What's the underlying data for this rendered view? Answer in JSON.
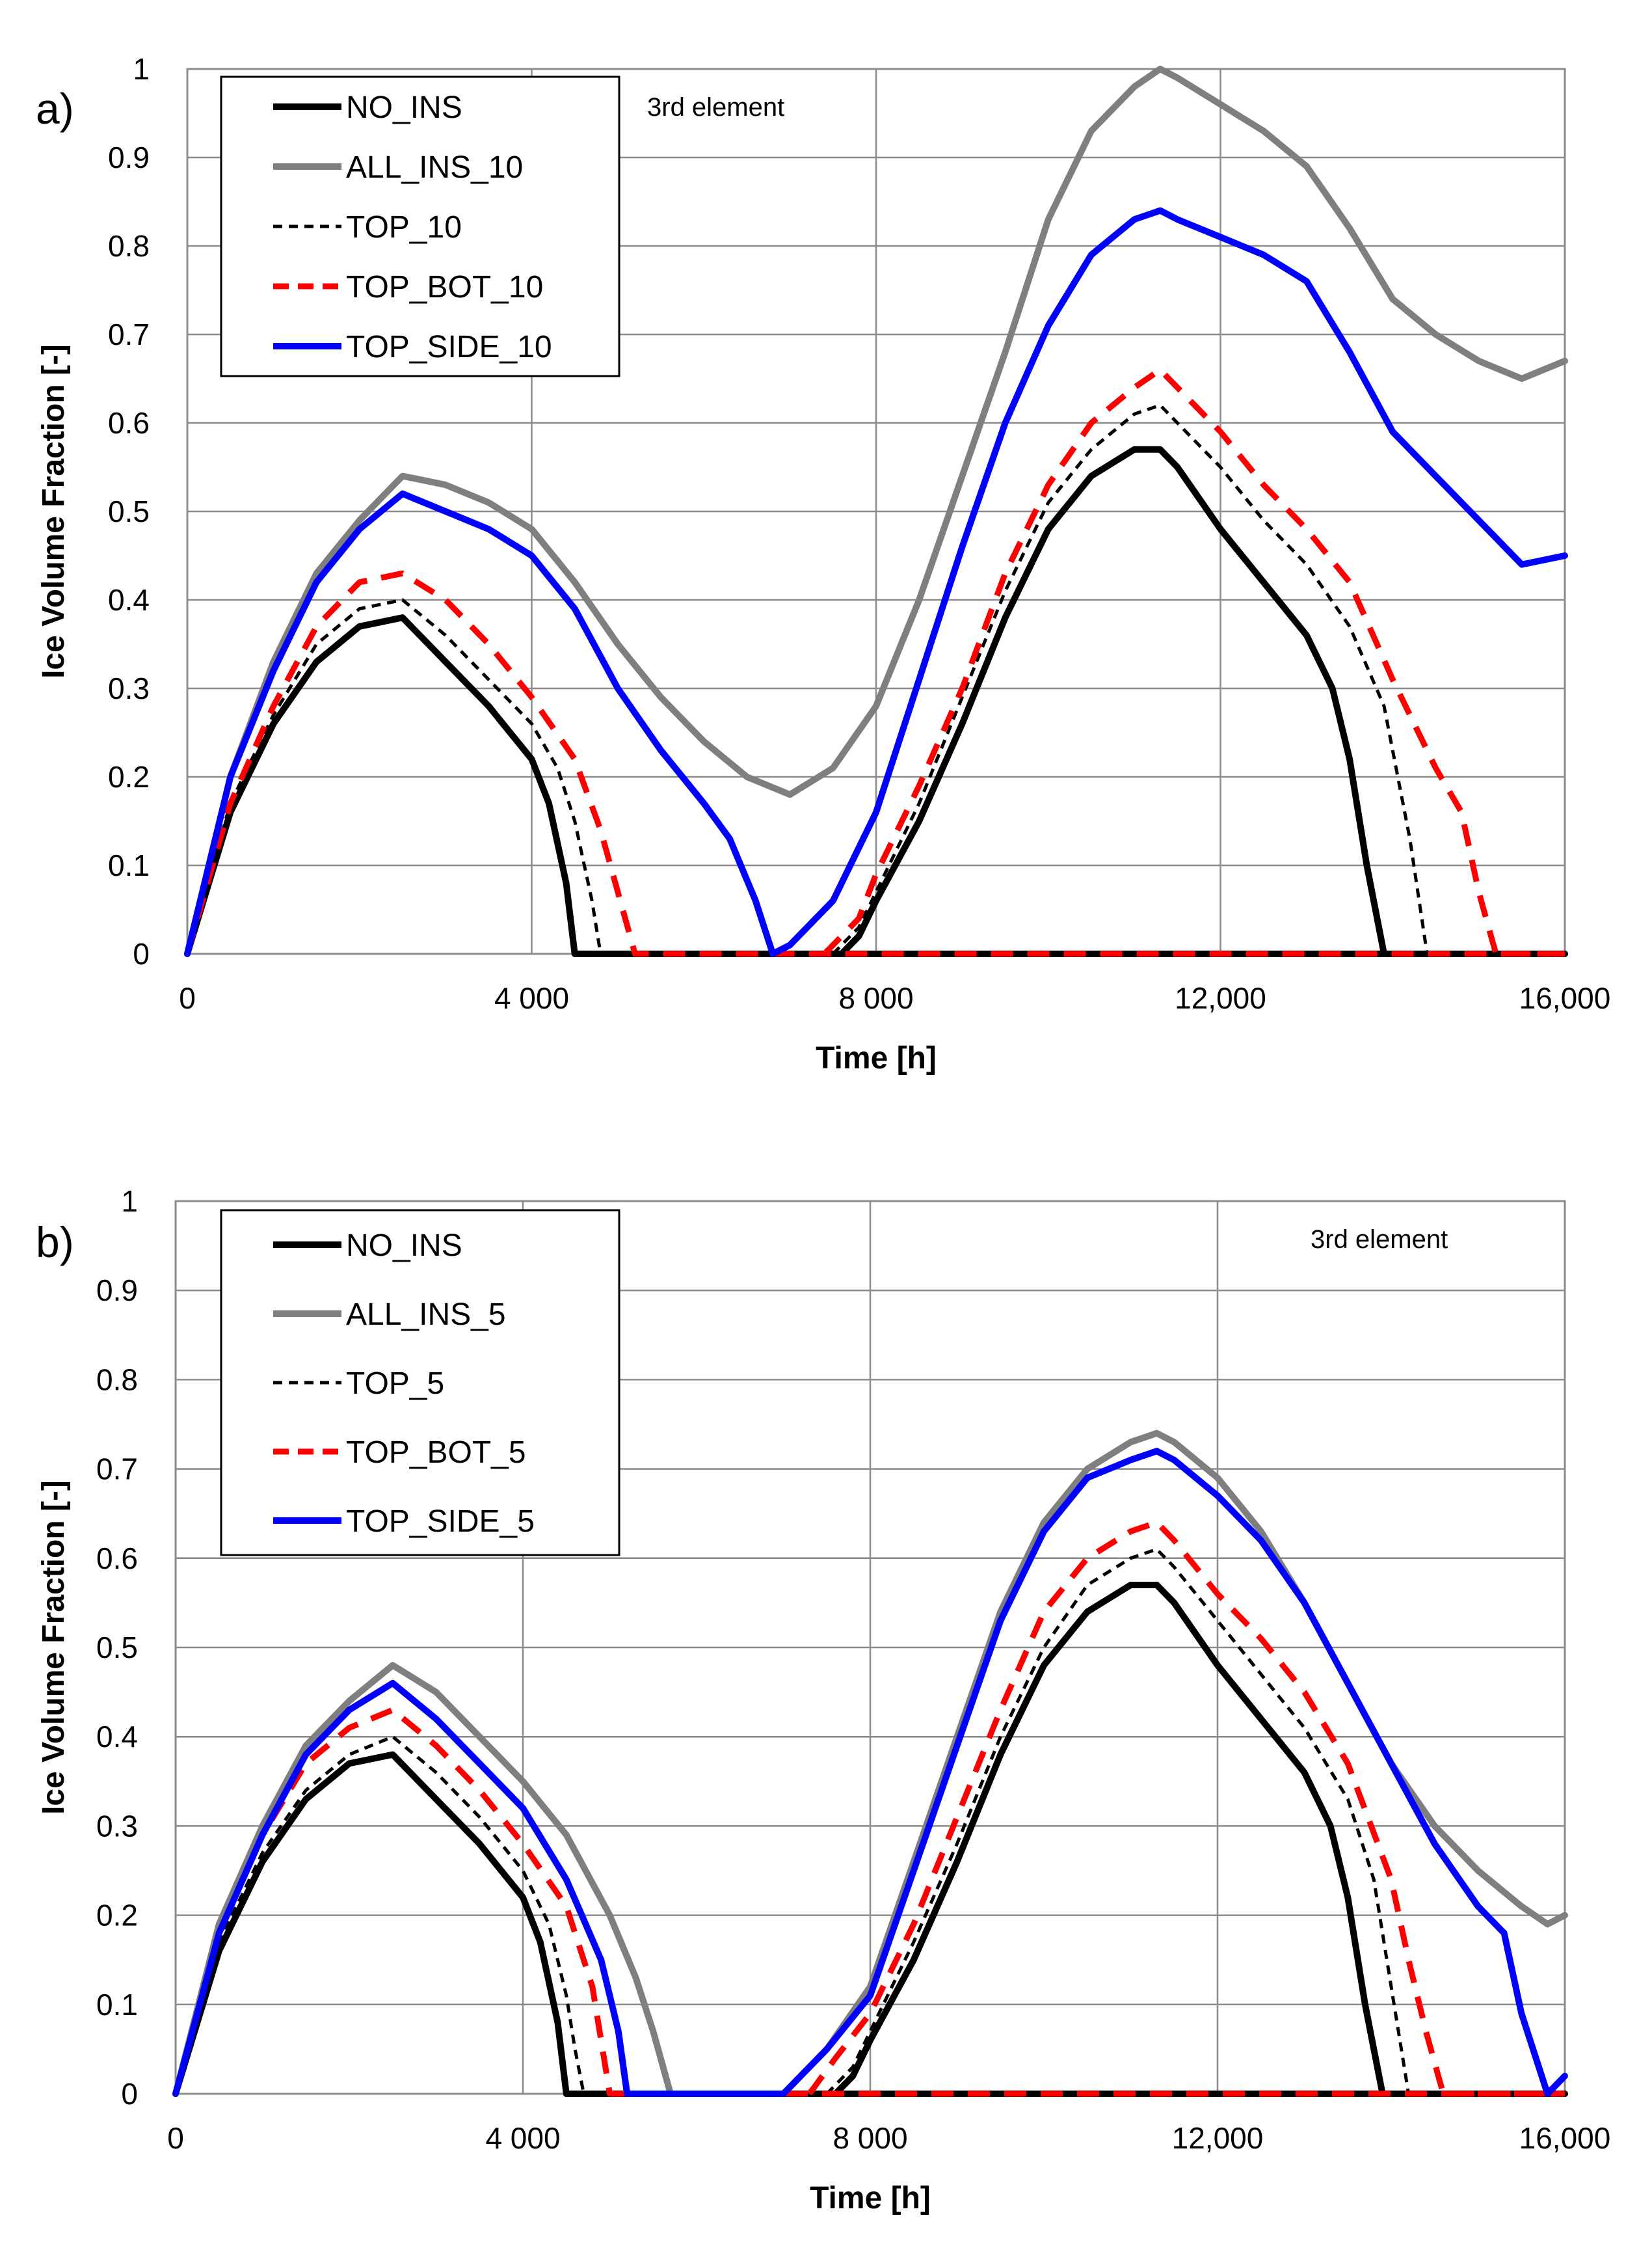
{
  "chart_data": [
    {
      "type": "line",
      "panel": "a)",
      "annotation": "3rd element",
      "xlabel": "Time [h]",
      "ylabel": "Ice Volume Fraction [-]",
      "xlim": [
        0,
        16000
      ],
      "ylim": [
        0,
        1
      ],
      "x_ticks": [
        0,
        4000,
        8000,
        12000,
        16000
      ],
      "x_tick_labels": [
        "0",
        "4 000",
        "8 000",
        "12,000",
        "16,000"
      ],
      "y_ticks": [
        0,
        0.1,
        0.2,
        0.3,
        0.4,
        0.5,
        0.6,
        0.7,
        0.8,
        0.9,
        1
      ],
      "y_tick_labels": [
        "0",
        "0.1",
        "0.2",
        "0.3",
        "0.4",
        "0.5",
        "0.6",
        "0.7",
        "0.8",
        "0.9",
        "1"
      ],
      "grid": true,
      "legend_position": "top-left",
      "series": [
        {
          "name": "NO_INS",
          "color": "#000000",
          "style": "solid",
          "x": [
            0,
            500,
            1000,
            1500,
            2000,
            2500,
            3000,
            3500,
            4000,
            4200,
            4400,
            4500,
            16000
          ],
          "y": [
            0,
            0.16,
            0.26,
            0.33,
            0.37,
            0.38,
            0.33,
            0.28,
            0.22,
            0.17,
            0.08,
            0,
            0
          ],
          "x2": [
            7600,
            7800,
            8000,
            8500,
            9000,
            9500,
            10000,
            10500,
            11000,
            11300,
            11500,
            12000,
            12500,
            13000,
            13300,
            13500,
            13700,
            13900,
            16000
          ],
          "y2": [
            0,
            0.02,
            0.06,
            0.15,
            0.26,
            0.38,
            0.48,
            0.54,
            0.57,
            0.57,
            0.55,
            0.48,
            0.42,
            0.36,
            0.3,
            0.22,
            0.1,
            0,
            0
          ]
        },
        {
          "name": "ALL_INS_10",
          "color": "#7f7f7f",
          "style": "solid",
          "x": [
            0,
            500,
            1000,
            1500,
            2000,
            2500,
            3000,
            3500,
            4000,
            4500,
            5000,
            5500,
            6000,
            6500,
            7000,
            7500,
            8000,
            8500,
            9000,
            9500,
            10000,
            10500,
            11000,
            11300,
            11500,
            12000,
            12500,
            13000,
            13500,
            14000,
            14500,
            15000,
            15500,
            16000
          ],
          "y": [
            0,
            0.2,
            0.33,
            0.43,
            0.49,
            0.54,
            0.53,
            0.51,
            0.48,
            0.42,
            0.35,
            0.29,
            0.24,
            0.2,
            0.18,
            0.21,
            0.28,
            0.4,
            0.54,
            0.68,
            0.83,
            0.93,
            0.98,
            1.0,
            0.99,
            0.96,
            0.93,
            0.89,
            0.82,
            0.74,
            0.7,
            0.67,
            0.65,
            0.67
          ]
        },
        {
          "name": "TOP_10",
          "color": "#000000",
          "style": "dashed",
          "x": [
            0,
            500,
            1000,
            1500,
            2000,
            2500,
            3000,
            3500,
            4000,
            4300,
            4500,
            4700,
            4800,
            16000
          ],
          "y": [
            0,
            0.17,
            0.27,
            0.35,
            0.39,
            0.4,
            0.36,
            0.31,
            0.26,
            0.21,
            0.15,
            0.06,
            0,
            0
          ],
          "x2": [
            7500,
            7800,
            8000,
            8500,
            9000,
            9500,
            10000,
            10500,
            11000,
            11300,
            11500,
            12000,
            12500,
            13000,
            13500,
            13900,
            14200,
            14400,
            16000
          ],
          "y2": [
            0,
            0.03,
            0.07,
            0.17,
            0.29,
            0.41,
            0.51,
            0.57,
            0.61,
            0.62,
            0.6,
            0.55,
            0.49,
            0.44,
            0.37,
            0.28,
            0.13,
            0,
            0
          ]
        },
        {
          "name": "TOP_BOT_10",
          "color": "#ff0000",
          "style": "dashed",
          "x": [
            0,
            500,
            1000,
            1500,
            2000,
            2500,
            3000,
            3500,
            4000,
            4500,
            4800,
            5000,
            5200,
            16000
          ],
          "y": [
            0,
            0.17,
            0.28,
            0.37,
            0.42,
            0.43,
            0.4,
            0.35,
            0.29,
            0.22,
            0.14,
            0.07,
            0,
            0
          ],
          "x2": [
            7400,
            7800,
            8000,
            8500,
            9000,
            9500,
            10000,
            10500,
            11000,
            11300,
            11500,
            12000,
            12500,
            13000,
            13500,
            14000,
            14500,
            14800,
            15000,
            15200,
            16000
          ],
          "y2": [
            0,
            0.04,
            0.09,
            0.19,
            0.3,
            0.43,
            0.53,
            0.6,
            0.64,
            0.66,
            0.64,
            0.59,
            0.53,
            0.48,
            0.42,
            0.31,
            0.21,
            0.16,
            0.07,
            0,
            0
          ]
        },
        {
          "name": "TOP_SIDE_10",
          "color": "#0000ff",
          "style": "solid",
          "x": [
            0,
            500,
            1000,
            1500,
            2000,
            2500,
            3000,
            3500,
            4000,
            4500,
            5000,
            5500,
            6000,
            6300,
            6600,
            6800,
            7000,
            7500,
            8000,
            8500,
            9000,
            9500,
            10000,
            10500,
            11000,
            11300,
            11500,
            12000,
            12500,
            13000,
            13500,
            14000,
            14500,
            15000,
            15500,
            16000
          ],
          "y": [
            0,
            0.2,
            0.32,
            0.42,
            0.48,
            0.52,
            0.5,
            0.48,
            0.45,
            0.39,
            0.3,
            0.23,
            0.17,
            0.13,
            0.06,
            0,
            0.01,
            0.06,
            0.16,
            0.31,
            0.46,
            0.6,
            0.71,
            0.79,
            0.83,
            0.84,
            0.83,
            0.81,
            0.79,
            0.76,
            0.68,
            0.59,
            0.54,
            0.49,
            0.44,
            0.45
          ]
        }
      ]
    },
    {
      "type": "line",
      "panel": "b)",
      "annotation": "3rd element",
      "xlabel": "Time [h]",
      "ylabel": "Ice Volume Fraction [-]",
      "xlim": [
        0,
        16000
      ],
      "ylim": [
        0,
        1
      ],
      "x_ticks": [
        0,
        4000,
        8000,
        12000,
        16000
      ],
      "x_tick_labels": [
        "0",
        "4 000",
        "8 000",
        "12,000",
        "16,000"
      ],
      "y_ticks": [
        0,
        0.1,
        0.2,
        0.3,
        0.4,
        0.5,
        0.6,
        0.7,
        0.8,
        0.9,
        1
      ],
      "y_tick_labels": [
        "0",
        "0.1",
        "0.2",
        "0.3",
        "0.4",
        "0.5",
        "0.6",
        "0.7",
        "0.8",
        "0.9",
        "1"
      ],
      "grid": true,
      "legend_position": "top-left",
      "series": [
        {
          "name": "NO_INS",
          "color": "#000000",
          "style": "solid",
          "x": [
            0,
            500,
            1000,
            1500,
            2000,
            2500,
            3000,
            3500,
            4000,
            4200,
            4400,
            4500,
            16000
          ],
          "y": [
            0,
            0.16,
            0.26,
            0.33,
            0.37,
            0.38,
            0.33,
            0.28,
            0.22,
            0.17,
            0.08,
            0,
            0
          ],
          "x2": [
            7600,
            7800,
            8000,
            8500,
            9000,
            9500,
            10000,
            10500,
            11000,
            11300,
            11500,
            12000,
            12500,
            13000,
            13300,
            13500,
            13700,
            13900,
            16000
          ],
          "y2": [
            0,
            0.02,
            0.06,
            0.15,
            0.26,
            0.38,
            0.48,
            0.54,
            0.57,
            0.57,
            0.55,
            0.48,
            0.42,
            0.36,
            0.3,
            0.22,
            0.1,
            0,
            0
          ]
        },
        {
          "name": "ALL_INS_5",
          "color": "#7f7f7f",
          "style": "solid",
          "x": [
            0,
            500,
            1000,
            1500,
            2000,
            2500,
            3000,
            3500,
            4000,
            4500,
            5000,
            5300,
            5500,
            5700,
            7000,
            7500,
            8000,
            8500,
            9000,
            9500,
            10000,
            10500,
            11000,
            11300,
            11500,
            12000,
            12500,
            13000,
            13500,
            14000,
            14500,
            15000,
            15500,
            15800,
            16000
          ],
          "y": [
            0,
            0.19,
            0.3,
            0.39,
            0.44,
            0.48,
            0.45,
            0.4,
            0.35,
            0.29,
            0.2,
            0.13,
            0.07,
            0,
            0,
            0.05,
            0.12,
            0.26,
            0.4,
            0.54,
            0.64,
            0.7,
            0.73,
            0.74,
            0.73,
            0.69,
            0.63,
            0.55,
            0.46,
            0.37,
            0.3,
            0.25,
            0.21,
            0.19,
            0.2
          ]
        },
        {
          "name": "TOP_5",
          "color": "#000000",
          "style": "dashed",
          "x": [
            0,
            500,
            1000,
            1500,
            2000,
            2500,
            3000,
            3500,
            4000,
            4300,
            4500,
            4600,
            4700,
            16000
          ],
          "y": [
            0,
            0.17,
            0.27,
            0.34,
            0.38,
            0.4,
            0.36,
            0.31,
            0.25,
            0.19,
            0.11,
            0.05,
            0,
            0
          ],
          "x2": [
            7500,
            7800,
            8000,
            8500,
            9000,
            9500,
            10000,
            10500,
            11000,
            11300,
            11500,
            12000,
            12500,
            13000,
            13500,
            13800,
            14000,
            14200,
            16000
          ],
          "y2": [
            0,
            0.03,
            0.07,
            0.17,
            0.28,
            0.4,
            0.5,
            0.57,
            0.6,
            0.61,
            0.59,
            0.53,
            0.47,
            0.41,
            0.33,
            0.24,
            0.12,
            0,
            0
          ]
        },
        {
          "name": "TOP_BOT_5",
          "color": "#ff0000",
          "style": "dashed",
          "x": [
            0,
            500,
            1000,
            1500,
            2000,
            2500,
            3000,
            3500,
            4000,
            4500,
            4800,
            4900,
            5000,
            16000
          ],
          "y": [
            0,
            0.18,
            0.29,
            0.37,
            0.41,
            0.43,
            0.39,
            0.34,
            0.28,
            0.21,
            0.12,
            0.06,
            0,
            0
          ],
          "x2": [
            7300,
            7600,
            8000,
            8500,
            9000,
            9500,
            10000,
            10500,
            11000,
            11300,
            11500,
            12000,
            12500,
            13000,
            13500,
            14000,
            14200,
            14400,
            14600,
            16000
          ],
          "y2": [
            0,
            0.04,
            0.09,
            0.19,
            0.31,
            0.43,
            0.54,
            0.6,
            0.63,
            0.64,
            0.62,
            0.56,
            0.51,
            0.45,
            0.37,
            0.24,
            0.15,
            0.07,
            0,
            0
          ]
        },
        {
          "name": "TOP_SIDE_5",
          "color": "#0000ff",
          "style": "solid",
          "x": [
            0,
            500,
            1000,
            1500,
            2000,
            2500,
            3000,
            3500,
            4000,
            4500,
            4900,
            5100,
            5200,
            7000,
            7500,
            8000,
            8500,
            9000,
            9500,
            10000,
            10500,
            11000,
            11300,
            11500,
            12000,
            12500,
            13000,
            13500,
            14000,
            14500,
            15000,
            15300,
            15500,
            15800,
            16000
          ],
          "y": [
            0,
            0.18,
            0.29,
            0.38,
            0.43,
            0.46,
            0.42,
            0.37,
            0.32,
            0.24,
            0.15,
            0.07,
            0,
            0,
            0.05,
            0.11,
            0.25,
            0.39,
            0.53,
            0.63,
            0.69,
            0.71,
            0.72,
            0.71,
            0.67,
            0.62,
            0.55,
            0.46,
            0.37,
            0.28,
            0.21,
            0.18,
            0.09,
            0,
            0.02
          ]
        }
      ]
    }
  ]
}
